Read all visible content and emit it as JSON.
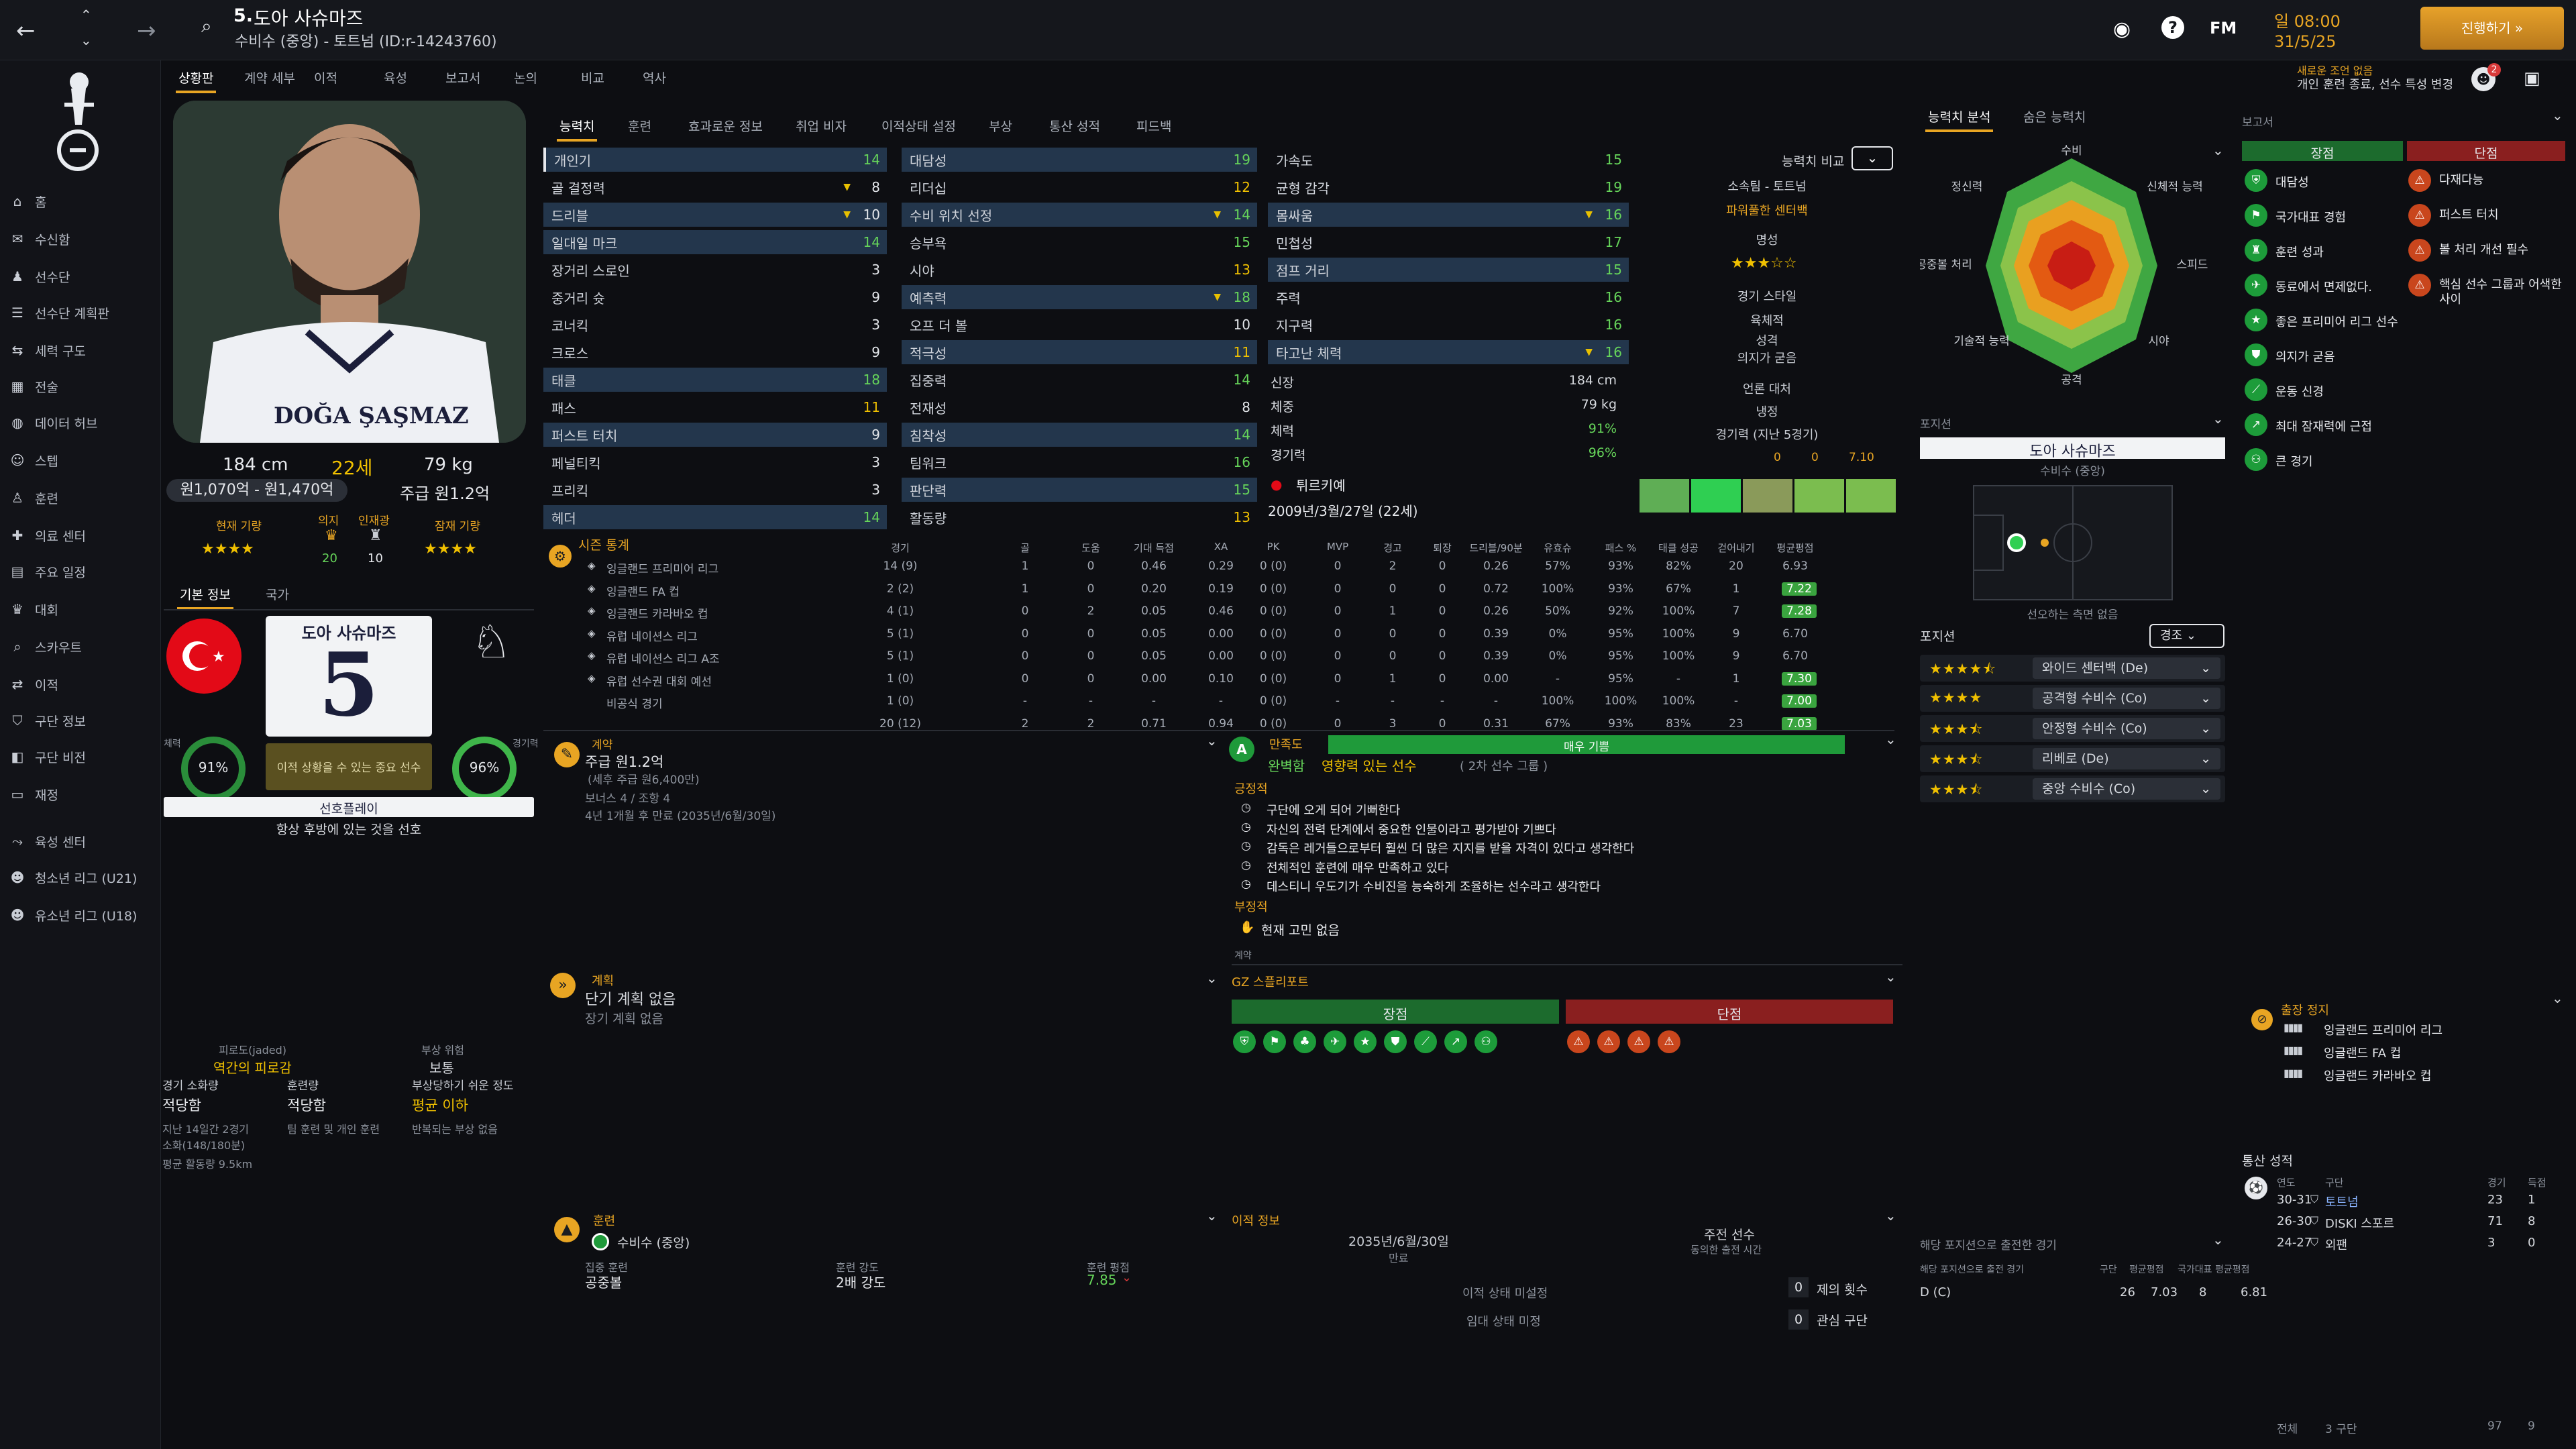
{
  "header": {
    "number": "5.",
    "name": "도아 사슈마즈",
    "subtitle": "수비수 (중앙) - 토트넘 (ID:r-14243760)",
    "date_time": "일 08:00",
    "date": "31/5/25",
    "continue_label": "진행하기 »",
    "notice_line1": "새로운 조언 없음",
    "notice_line2": "개인 훈련 종료, 선수 특성 변경",
    "fm_label": "FM",
    "notif_count": "2"
  },
  "subtabs": [
    "상황판",
    "계약 세부",
    "이적",
    "육성",
    "보고서",
    "논의",
    "비교",
    "역사"
  ],
  "attr_tabs": [
    "능력치",
    "훈련",
    "효과로운 정보",
    "취업 비자",
    "이적상태 설정",
    "부상",
    "통산 성적",
    "피드백"
  ],
  "sidebar": [
    "홈",
    "수신함",
    "선수단",
    "선수단 계획판",
    "세력 구도",
    "전술",
    "데이터 허브",
    "스텝",
    "훈련",
    "의료 센터",
    "주요 일정",
    "대회",
    "스카우트",
    "이적",
    "구단 정보",
    "구단 비전",
    "재정",
    "육성 센터",
    "청소년 리그 (U21)",
    "유소년 리그 (U18)"
  ],
  "player_card": {
    "shirt_name": "DOĞA ŞAŞMAZ",
    "height": "184 cm",
    "age": "22세",
    "weight": "79 kg",
    "value": "원1,070억 - 원1,470억",
    "wage": "주급 원1.2억",
    "current_label": "현재 기량",
    "form_label": "의지",
    "injury_label": "인재광",
    "potential_label": "잠재 기량",
    "form_val": "20",
    "injury_val": "10"
  },
  "info_tabs": [
    "기본 정보",
    "국가"
  ],
  "jersey": {
    "name": "도아 사슈마즈",
    "number": "5"
  },
  "fitness": {
    "left_label": "체력",
    "left_val": "91%",
    "right_label": "경기력",
    "right_val": "96%",
    "mid_text": "이적 상황을 수 있는 중요 선수"
  },
  "role_bar": "선호플레이",
  "role_sub": "항상 후방에 있는 것을 선호",
  "morale": {
    "t1": "피로도(jaded)",
    "t2": "역간의 피로감",
    "t3": "부상 위험",
    "t4": "보통",
    "c1": "경기 소화량",
    "c1v": "적당함",
    "c2": "훈련량",
    "c2v": "적당함",
    "c3": "부상당하기 쉬운 정도",
    "c3v": "평균 이하",
    "n1": "지난 14일간 2경기",
    "n2": "소화(148/180분)",
    "n3": "평균 활동량 9.5km",
    "n4": "팀 훈련 및 개인 훈련",
    "n5": "반복되는 부상 없음"
  },
  "attrs_col1": [
    [
      "개인기",
      "14"
    ],
    [
      "골 결정력",
      "8"
    ],
    [
      "드리블",
      "10"
    ],
    [
      "일대일 마크",
      "14"
    ],
    [
      "장거리 스로인",
      "3"
    ],
    [
      "중거리 슛",
      "9"
    ],
    [
      "코너킥",
      "3"
    ],
    [
      "크로스",
      "9"
    ],
    [
      "태클",
      "18"
    ],
    [
      "패스",
      "11"
    ],
    [
      "퍼스트 터치",
      "9"
    ],
    [
      "페널티킥",
      "3"
    ],
    [
      "프리킥",
      "3"
    ],
    [
      "헤더",
      "14"
    ]
  ],
  "attrs_col2": [
    [
      "대담성",
      "19"
    ],
    [
      "리더십",
      "12"
    ],
    [
      "수비 위치 선정",
      "14"
    ],
    [
      "승부욕",
      "15"
    ],
    [
      "시야",
      "13"
    ],
    [
      "예측력",
      "18"
    ],
    [
      "오프 더 볼",
      "10"
    ],
    [
      "적극성",
      "11"
    ],
    [
      "집중력",
      "14"
    ],
    [
      "전재성",
      "8"
    ],
    [
      "침착성",
      "14"
    ],
    [
      "팀워크",
      "16"
    ],
    [
      "판단력",
      "15"
    ],
    [
      "활동량",
      "13"
    ]
  ],
  "attrs_col3": [
    [
      "가속도",
      "15"
    ],
    [
      "균형 감각",
      "19"
    ],
    [
      "몸싸움",
      "16"
    ],
    [
      "민첩성",
      "17"
    ],
    [
      "점프 거리",
      "15"
    ],
    [
      "주력",
      "16"
    ],
    [
      "지구력",
      "16"
    ],
    [
      "타고난 체력",
      "16"
    ]
  ],
  "physical": [
    [
      "신장",
      "184 cm"
    ],
    [
      "체중",
      "79 kg"
    ],
    [
      "체력",
      "91%"
    ],
    [
      "경기력",
      "96%"
    ]
  ],
  "nationality": "튀르키예",
  "birth": "2009년/3월/27일 (22세)",
  "compare": {
    "label": "능력치 비교",
    "l1": "소속팀 - 토트넘",
    "l2": "파워풀한 센터백",
    "l3": "명성",
    "l4": "경기 스타일",
    "l5": "육체적",
    "l6": "성격",
    "l7": "의지가 굳음",
    "l8": "언론 대처",
    "l9": "냉정",
    "l10": "경기력 (지난 5경기)",
    "s1": "0",
    "s2": "0",
    "s3": "7.10"
  },
  "season": {
    "title": "시즌 통계",
    "cols": [
      "경기",
      "골",
      "도움",
      "기대 득점",
      "XA",
      "PK",
      "MVP",
      "경고",
      "퇴장",
      "드리블/90분",
      "유효슈",
      "패스 %",
      "태클 성공",
      "걷어내기",
      "평균평점"
    ],
    "rows": [
      [
        "잉글랜드 프리미어 리그",
        "14 (9)",
        "1",
        "0",
        "0.46",
        "0.29",
        "0 (0)",
        "0",
        "2",
        "0",
        "0.26",
        "57%",
        "93%",
        "82%",
        "20",
        "6.93"
      ],
      [
        "잉글랜드 FA 컵",
        "2 (2)",
        "1",
        "0",
        "0.20",
        "0.19",
        "0 (0)",
        "0",
        "0",
        "0",
        "0.72",
        "100%",
        "93%",
        "67%",
        "1",
        "7.22"
      ],
      [
        "잉글랜드 카라바오 컵",
        "4 (1)",
        "0",
        "2",
        "0.05",
        "0.46",
        "0 (0)",
        "0",
        "1",
        "0",
        "0.26",
        "50%",
        "92%",
        "100%",
        "7",
        "7.28"
      ],
      [
        "유럽 네이션스 리그",
        "5 (1)",
        "0",
        "0",
        "0.05",
        "0.00",
        "0 (0)",
        "0",
        "0",
        "0",
        "0.39",
        "0%",
        "95%",
        "100%",
        "9",
        "6.70"
      ],
      [
        "유럽 네이션스 리그 A조",
        "5 (1)",
        "0",
        "0",
        "0.05",
        "0.00",
        "0 (0)",
        "0",
        "0",
        "0",
        "0.39",
        "0%",
        "95%",
        "100%",
        "9",
        "6.70"
      ],
      [
        "유럽 선수권 대회 예선",
        "1 (0)",
        "0",
        "0",
        "0.00",
        "0.10",
        "0 (0)",
        "0",
        "1",
        "0",
        "0.00",
        "-",
        "95%",
        "-",
        "1",
        "7.30"
      ],
      [
        "비공식 경기",
        "1 (0)",
        "-",
        "-",
        "-",
        "-",
        "0 (0)",
        "-",
        "-",
        "-",
        "-",
        "100%",
        "100%",
        "100%",
        "-",
        "7.00"
      ],
      [
        "",
        "20 (12)",
        "2",
        "2",
        "0.71",
        "0.94",
        "0 (0)",
        "0",
        "3",
        "0",
        "0.31",
        "67%",
        "93%",
        "83%",
        "23",
        "7.03"
      ]
    ]
  },
  "contract": {
    "title": "계약",
    "wage": "주급 원1.2억",
    "detail1": "(세후 주급 원6,400만)",
    "detail2": "보너스 4 / 조항 4",
    "detail3": "4년 1개월 후 만료 (2035년/6월/30일)"
  },
  "happy": {
    "title": "만족도",
    "bar": "매우 기쁨",
    "l1": "완벽함",
    "l2": "영향력 있는 선수",
    "l3": "( 2차 선수 그룹 )",
    "pos": "긍정적",
    "items": [
      "구단에 오게 되어 기뻐한다",
      "자신의 전력 단계에서 중요한 인물이라고 평가받아 기쁘다",
      "감독은 레거들으로부터 훨씬 더 많은 지지를 받을 자격이 있다고 생각한다",
      "전체적인 훈련에 매우 만족하고 있다",
      "데스티니 우도기가 수비진을 능숙하게 조율하는 선수라고 생각한다"
    ],
    "neg": "부정적",
    "neg_item": "현재 고민 없음",
    "cut": "계약"
  },
  "plan": {
    "title": "계획",
    "l1": "단기 계획 없음",
    "l2": "장기 계획 없음"
  },
  "gz": {
    "title": "GZ 스플리포트",
    "pros": "장점",
    "cons": "단점"
  },
  "training": {
    "title": "훈련",
    "role": "수비수 (중앙)",
    "c1": "집중 훈련",
    "c1v": "공중볼",
    "c2": "훈련 강도",
    "c2v": "2배 강도",
    "c3": "훈련 평점",
    "c3v": "7.85"
  },
  "transfer": {
    "title": "이적 정보",
    "d1": "2035년/6월/30일",
    "d1l": "만료",
    "d2": "주전 선수",
    "d2l": "동의한 출전 시간",
    "st1": "이적 상태 미설정",
    "st2": "임대 상태 미정",
    "n1": "0",
    "n1l": "제의 횟수",
    "n2": "0",
    "n2l": "관심 구단"
  },
  "radar_tabs": [
    "능력치 분석",
    "숨은 능력치"
  ],
  "radar_labels": [
    "수비",
    "신체적 능력",
    "스피드",
    "시야",
    "공격",
    "기술적 능력",
    "공중볼 처리",
    "정신력"
  ],
  "position": {
    "title": "포지션",
    "name": "도아 사슈마즈",
    "sub": "수비수 (중앙)",
    "note": "선오하는 측면 없음",
    "roles_title": "포지션",
    "roles_btn": "경조",
    "roles": [
      [
        "4.5",
        "와이드 센터백 (De)"
      ],
      [
        "4",
        "공격형 수비수 (Co)"
      ],
      [
        "3.5",
        "안정형 수비수 (Co)"
      ],
      [
        "3.5",
        "리베로 (De)"
      ],
      [
        "3.5",
        "중앙 수비수 (Co)"
      ]
    ]
  },
  "pos_games": {
    "title": "해당 포지션으로 출전한 경기",
    "cols": [
      "해당 포지션으로 출전 경기",
      "구단",
      "평균평점",
      "국가대표",
      "평균평점"
    ],
    "row": [
      "D (C)",
      "26",
      "7.03",
      "8",
      "6.81"
    ]
  },
  "report": {
    "title": "보고서",
    "pros_h": "장점",
    "cons_h": "단점",
    "pros": [
      "대담성",
      "국가대표 경험",
      "훈련 성과",
      "동료에서 면제없다.",
      "좋은 프리미어 리그 선수",
      "의지가 굳음",
      "운동 신경",
      "최대 잠재력에 근접",
      "큰 경기"
    ],
    "cons": [
      "다재다능",
      "퍼스트 터치",
      "볼 처리 개선 필수",
      "핵심 선수 그룹과 어색한 사이"
    ]
  },
  "suspension": {
    "title": "출장 정지",
    "items": [
      "잉글랜드 프리미어 리그",
      "잉글랜드 FA 컵",
      "잉글랜드 카라바오 컵"
    ]
  },
  "career": {
    "title": "통산 성적",
    "cols": [
      "연도",
      "구단",
      "경기",
      "득점"
    ],
    "rows": [
      [
        "30-31",
        "토트넘",
        "23",
        "1"
      ],
      [
        "26-30",
        "DISKI 스포르",
        "71",
        "8"
      ],
      [
        "24-27",
        "외팬",
        "3",
        "0"
      ]
    ],
    "total_l": "전체",
    "total_c": "3 구단",
    "total_g": "97",
    "total_s": "9"
  },
  "colors": {
    "accent": "#e8a523",
    "green": "#66d55a",
    "yellow": "#f0c000",
    "pro_header": "#1c6b2d",
    "con_header": "#8a1f1f"
  }
}
